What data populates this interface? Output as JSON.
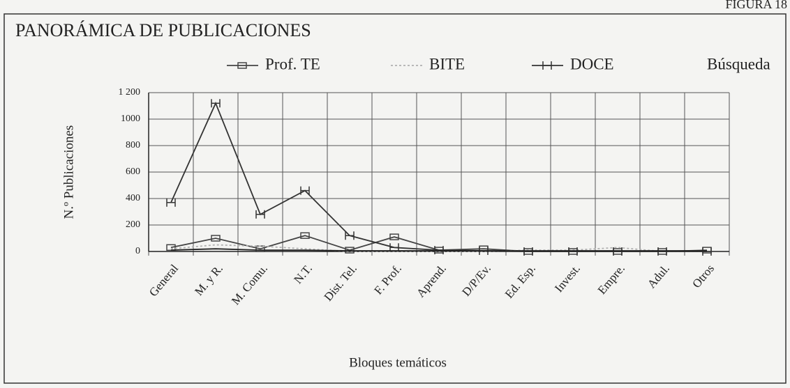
{
  "chart_data": {
    "type": "line",
    "figure_label": "FIGURA 18",
    "title": "PANORÁMICA DE PUBLICACIONES",
    "x_label": "Bloques temáticos",
    "y_label": "N.º Publicaciones",
    "categories": [
      "General",
      "M. y R.",
      "M. Comu.",
      "N.T.",
      "Dist. Tel.",
      "F. Prof.",
      "Aprend.",
      "D/P/Ev.",
      "Ed. Esp.",
      "Invest.",
      "Empre.",
      "Adul.",
      "Otros"
    ],
    "series": [
      {
        "name": "Prof. TE",
        "color": "#444444",
        "marker": "square",
        "dash": "",
        "values": [
          30,
          100,
          20,
          120,
          10,
          110,
          10,
          20,
          0,
          0,
          0,
          0,
          10
        ]
      },
      {
        "name": "BITE",
        "color": "#b0b0b0",
        "marker": "none",
        "dash": "3 3",
        "values": [
          20,
          50,
          40,
          20,
          0,
          0,
          0,
          0,
          10,
          10,
          30,
          0,
          0
        ]
      },
      {
        "name": "DOCE",
        "color": "#333333",
        "marker": "h",
        "dash": "",
        "values": [
          370,
          1120,
          280,
          460,
          120,
          30,
          10,
          5,
          0,
          0,
          0,
          0,
          0
        ]
      },
      {
        "name": "Búsqueda",
        "color": "#222222",
        "marker": "none",
        "dash": "",
        "values": [
          10,
          20,
          10,
          10,
          5,
          5,
          5,
          5,
          5,
          5,
          5,
          5,
          5
        ]
      }
    ],
    "ylim": [
      0,
      1200
    ],
    "yticks": [
      0,
      200,
      400,
      600,
      800,
      {
        "value": 1000,
        "label": "1000"
      },
      {
        "value": 1200,
        "label": "1 200"
      }
    ],
    "grid": true
  }
}
